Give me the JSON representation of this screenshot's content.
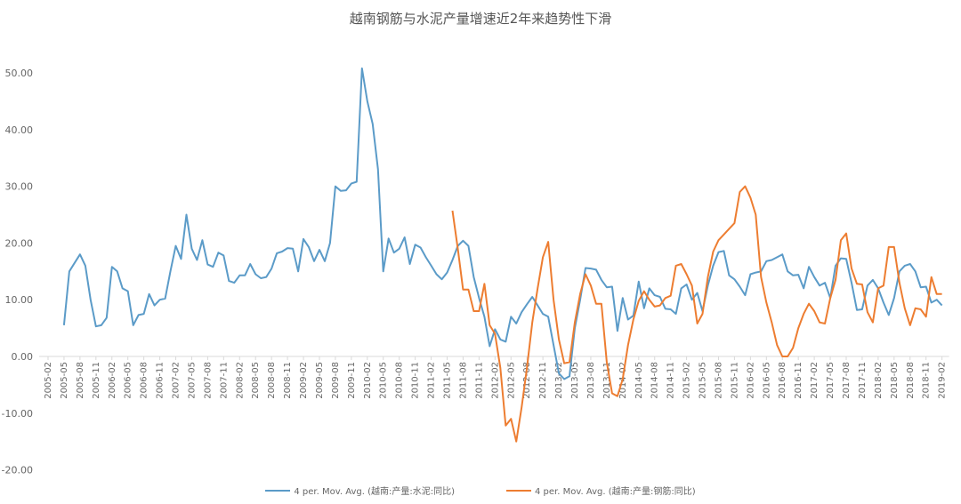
{
  "chart_data": {
    "type": "line",
    "title": "越南钢筋与水泥产量增速近2年来趋势性下滑",
    "xlabel": "",
    "ylabel": "",
    "ylim": [
      -20,
      50
    ],
    "yticks": [
      "50.00",
      "40.00",
      "30.00",
      "20.00",
      "10.00",
      "0.00",
      "-10.00",
      "-20.00"
    ],
    "ytick_values": [
      50,
      40,
      30,
      20,
      10,
      0,
      -10,
      -20
    ],
    "x_start": "2005-02",
    "x_end": "2019-03",
    "xticks": [
      "2005-02",
      "2005-05",
      "2005-08",
      "2005-11",
      "2006-02",
      "2006-05",
      "2006-08",
      "2006-11",
      "2007-02",
      "2007-05",
      "2007-08",
      "2007-11",
      "2008-02",
      "2008-05",
      "2008-08",
      "2008-11",
      "2009-02",
      "2009-05",
      "2009-08",
      "2009-11",
      "2010-02",
      "2010-05",
      "2010-08",
      "2010-11",
      "2011-02",
      "2011-05",
      "2011-08",
      "2011-11",
      "2012-02",
      "2012-05",
      "2012-08",
      "2012-11",
      "2013-02",
      "2013-05",
      "2013-08",
      "2013-11",
      "2014-02",
      "2014-05",
      "2014-08",
      "2014-11",
      "2015-02",
      "2015-05",
      "2015-08",
      "2015-11",
      "2016-02",
      "2016-05",
      "2016-08",
      "2016-11",
      "2017-02",
      "2017-05",
      "2017-08",
      "2017-11",
      "2018-02",
      "2018-05",
      "2018-08",
      "2018-11",
      "2019-02"
    ],
    "grid": false,
    "legend_position": "bottom",
    "series": [
      {
        "name": "4 per. Mov. Avg. (越南:产量:水泥:同比)",
        "color": "#5b9bc8",
        "start": "2005-05",
        "values": [
          5.5,
          15,
          16.5,
          18,
          16,
          10,
          5.3,
          5.5,
          6.8,
          15.8,
          15,
          12,
          11.5,
          5.5,
          7.3,
          7.5,
          11,
          9,
          10,
          10.2,
          15,
          19.5,
          17.2,
          25,
          19,
          17,
          20.5,
          16.2,
          15.8,
          18.3,
          17.8,
          13.3,
          13,
          14.3,
          14.3,
          16.3,
          14.5,
          13.8,
          14,
          15.5,
          18.2,
          18.5,
          19.1,
          19,
          15,
          20.7,
          19.3,
          16.8,
          18.8,
          16.8,
          20,
          30,
          29.2,
          29.3,
          30.5,
          30.8,
          50.8,
          45,
          41,
          33,
          15,
          20.8,
          18.3,
          19,
          21,
          16.3,
          19.7,
          19.2,
          17.5,
          16,
          14.5,
          13.6,
          14.8,
          17,
          19.5,
          20.4,
          19.5,
          14,
          10.3,
          7,
          1.8,
          4.8,
          3,
          2.6,
          7,
          5.8,
          7.8,
          9.2,
          10.5,
          9,
          7.5,
          7,
          2,
          -3,
          -4,
          -3.5,
          5,
          10,
          15.6,
          15.5,
          15.3,
          13.5,
          12.2,
          12.3,
          4.5,
          10.3,
          6.5,
          7.2,
          13.2,
          8.5,
          12,
          10.8,
          10.5,
          8.4,
          8.3,
          7.5,
          12,
          12.7,
          10,
          11.2,
          8,
          12.5,
          16,
          18.4,
          18.6,
          14.3,
          13.6,
          12.3,
          10.8,
          14.5,
          14.8,
          15,
          16.8,
          17,
          17.5,
          18,
          15,
          14.3,
          14.4,
          12,
          15.8,
          14,
          12.5,
          13,
          10.3,
          16,
          17.3,
          17.2,
          13,
          8.2,
          8.3,
          12.5,
          13.5,
          12,
          9.5,
          7.3,
          10.3,
          15,
          16,
          16.3,
          15,
          12.2,
          12.3,
          9.5,
          10,
          9
        ]
      },
      {
        "name": "4 per. Mov. Avg. (越南:产量:钢筋:同比)",
        "color": "#ed7d31",
        "start": "2011-06",
        "values": [
          25.7,
          19,
          11.8,
          11.8,
          8,
          8,
          12.8,
          5.5,
          4,
          -2,
          -12.2,
          -11,
          -15,
          -9,
          -2,
          6,
          12,
          17.5,
          20.2,
          10,
          3,
          -1.2,
          -1,
          6,
          11,
          14.5,
          12.5,
          9.3,
          9.3,
          -1,
          -6.5,
          -7,
          -4,
          2,
          6.5,
          9.8,
          11.5,
          10,
          8.8,
          9,
          10.3,
          10.7,
          16,
          16.3,
          14.5,
          12.5,
          5.8,
          7.5,
          14,
          18.5,
          20.5,
          21.5,
          22.5,
          23.5,
          29,
          30,
          28,
          25,
          14,
          9.5,
          6,
          2,
          0,
          0,
          1.5,
          5,
          7.5,
          9.3,
          8,
          6,
          5.8,
          10.3,
          13.5,
          20.5,
          21.7,
          15.5,
          12.8,
          12.7,
          7.8,
          6,
          12,
          12.5,
          19.3,
          19.3,
          13,
          8.5,
          5.5,
          8.5,
          8.3,
          7,
          14,
          11,
          11
        ]
      }
    ]
  }
}
